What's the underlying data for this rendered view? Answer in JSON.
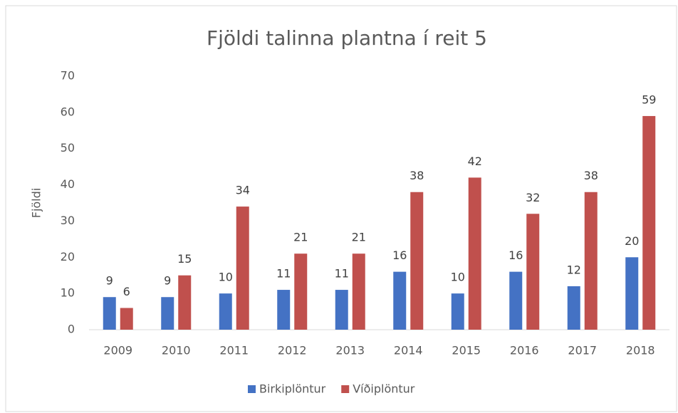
{
  "chart_data": {
    "type": "bar",
    "title": "Fjöldi talinna plantna í reit 5",
    "y_label": "Fjöldi",
    "categories": [
      "2009",
      "2010",
      "2011",
      "2012",
      "2013",
      "2014",
      "2015",
      "2016",
      "2017",
      "2018"
    ],
    "series": [
      {
        "name": "Birkiplöntur",
        "color": "#4472c4",
        "values": [
          9,
          9,
          10,
          11,
          11,
          16,
          10,
          16,
          12,
          20
        ]
      },
      {
        "name": "Víðiplöntur",
        "color": "#c0504d",
        "values": [
          6,
          15,
          34,
          21,
          21,
          38,
          42,
          32,
          38,
          59
        ]
      }
    ],
    "ylim": [
      0,
      70
    ],
    "yticks": [
      0,
      10,
      20,
      30,
      40,
      50,
      60,
      70
    ],
    "grid": false,
    "legend": "bottom"
  }
}
